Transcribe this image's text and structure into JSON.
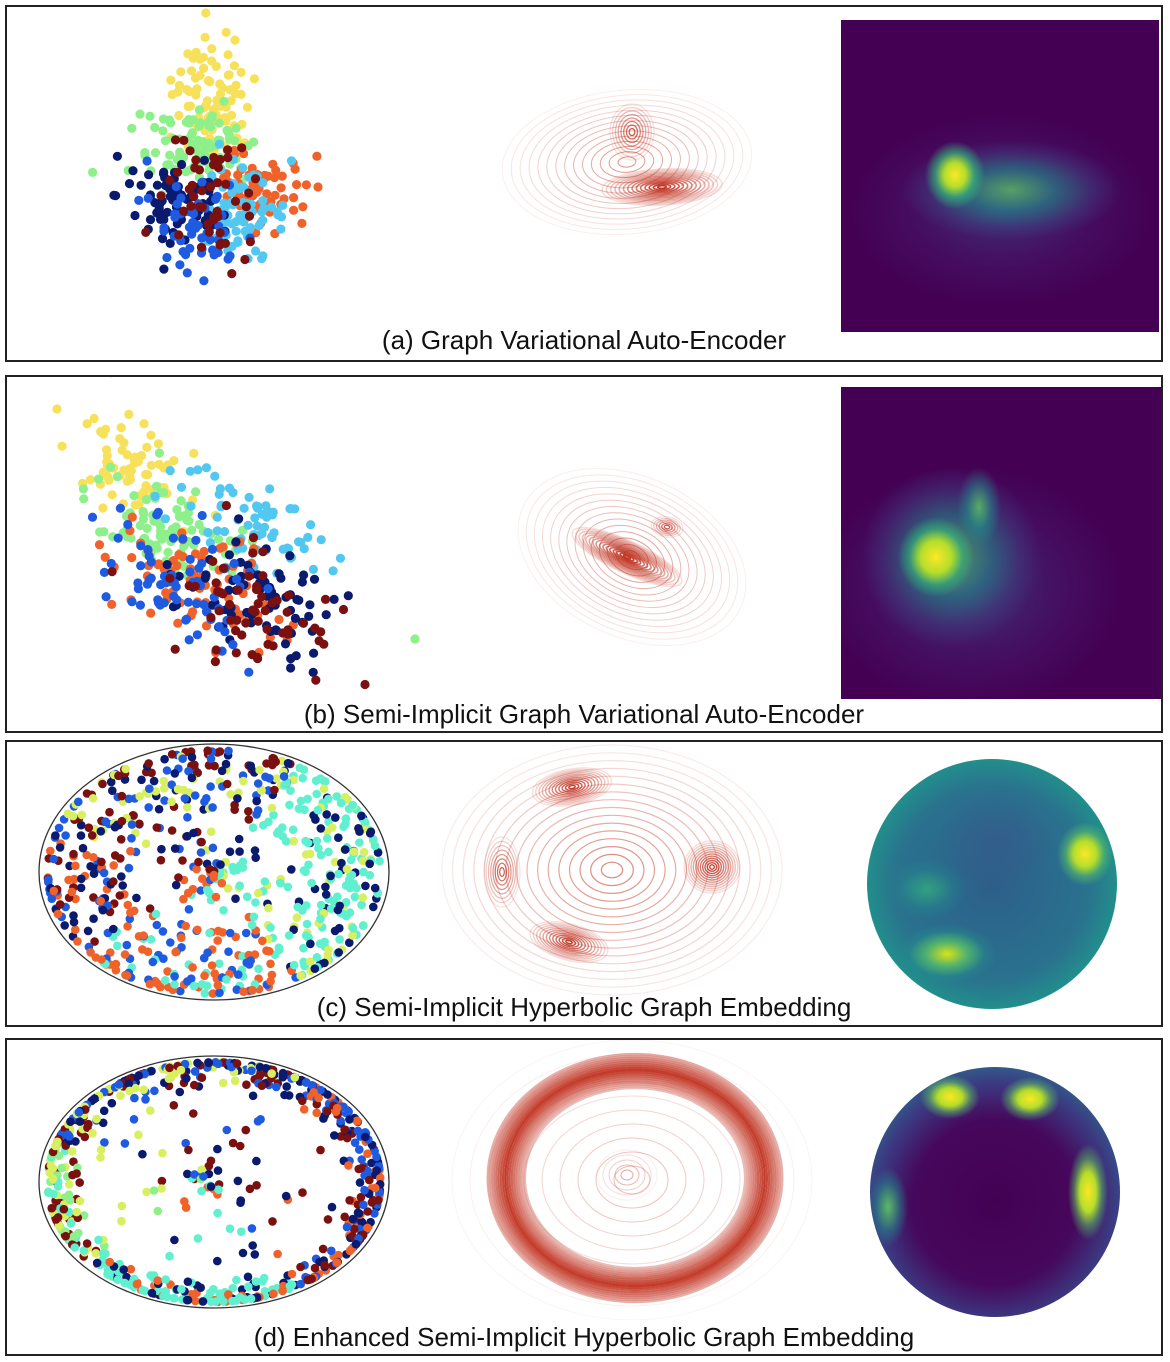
{
  "figure": {
    "panels": [
      {
        "id": "a",
        "caption": "(a) Graph Variational Auto-Encoder",
        "geometry": "euclidean"
      },
      {
        "id": "b",
        "caption": "(b) Semi-Implicit Graph Variational Auto-Encoder",
        "geometry": "euclidean"
      },
      {
        "id": "c",
        "caption": "(c) Semi-Implicit Hyperbolic Graph Embedding",
        "geometry": "hyperbolic"
      },
      {
        "id": "d",
        "caption": "(d) Enhanced Semi-Implicit Hyperbolic Graph Embedding",
        "geometry": "hyperbolic"
      }
    ],
    "colors": {
      "cluster_palette": [
        "#0a1a6e",
        "#1f5be0",
        "#52c8f0",
        "#8ef08a",
        "#f7e15a",
        "#f0622a",
        "#7a1010",
        "#60f0d0",
        "#d8f060"
      ],
      "contour": "#c0301e",
      "viridis": [
        "#440154",
        "#3b528b",
        "#21918c",
        "#5ec962",
        "#fde725"
      ]
    }
  }
}
